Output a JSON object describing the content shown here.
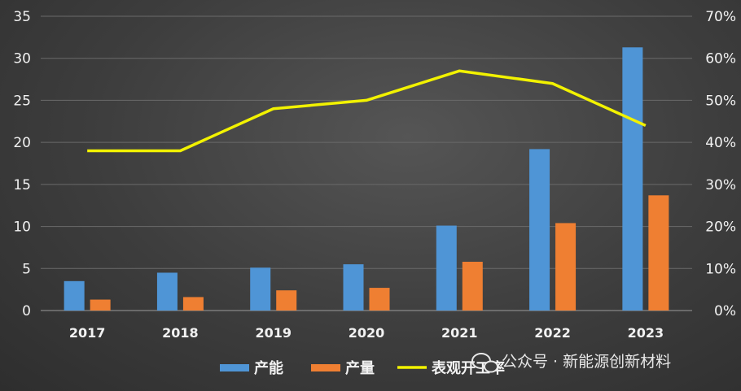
{
  "chart_data": {
    "type": "bar",
    "categories": [
      "2017",
      "2018",
      "2019",
      "2020",
      "2021",
      "2022",
      "2023"
    ],
    "series": [
      {
        "name": "产能",
        "type": "bar",
        "axis": "left",
        "color": "#4f95d6",
        "values": [
          3.5,
          4.5,
          5.1,
          5.5,
          10.1,
          19.2,
          31.3
        ]
      },
      {
        "name": "产量",
        "type": "bar",
        "axis": "left",
        "color": "#ef7f32",
        "values": [
          1.3,
          1.6,
          2.4,
          2.7,
          5.8,
          10.4,
          13.7
        ]
      },
      {
        "name": "表观开工率",
        "type": "line",
        "axis": "right",
        "color": "#f2f200",
        "values": [
          0.38,
          0.38,
          0.48,
          0.5,
          0.57,
          0.54,
          0.44
        ]
      }
    ],
    "y_left": {
      "min": 0,
      "max": 35,
      "ticks": [
        0,
        5,
        10,
        15,
        20,
        25,
        30,
        35
      ]
    },
    "y_right": {
      "min": 0,
      "max": 0.7,
      "ticks": [
        "0%",
        "10%",
        "20%",
        "30%",
        "40%",
        "50%",
        "60%",
        "70%"
      ]
    },
    "grid": true,
    "legend_position": "bottom"
  },
  "watermark": {
    "text": "公众号 · 新能源创新材料",
    "icon": "wechat-icon"
  }
}
